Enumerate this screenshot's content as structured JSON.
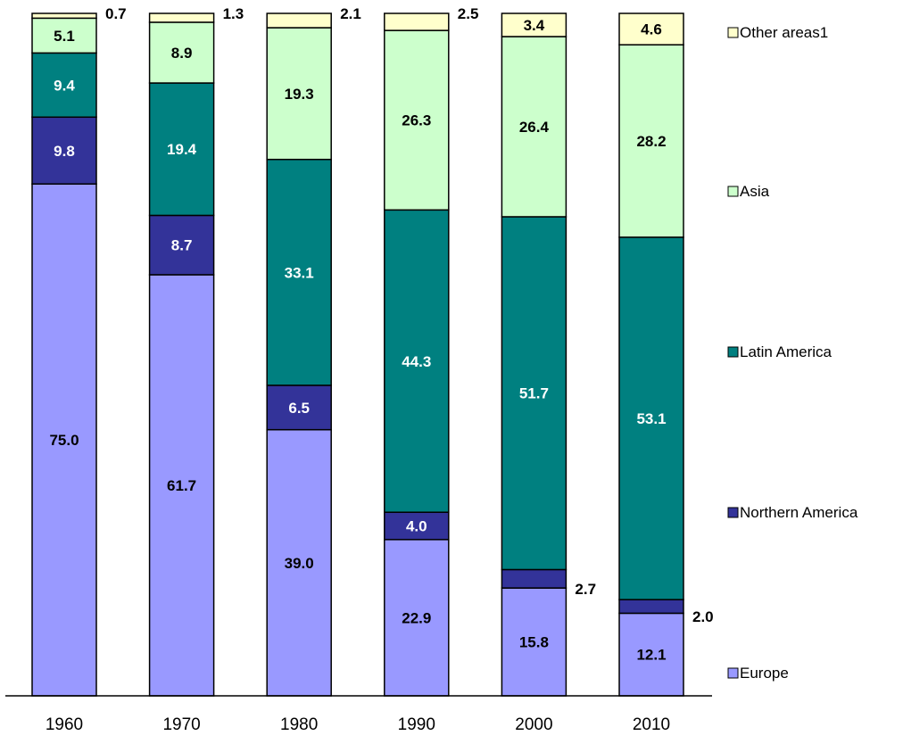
{
  "chart_data": {
    "type": "bar",
    "stacked": true,
    "categories": [
      "1960",
      "1970",
      "1980",
      "1990",
      "2000",
      "2010"
    ],
    "series": [
      {
        "name": "Europe",
        "color": "#9999ff",
        "values": [
          75.0,
          61.7,
          39.0,
          22.9,
          15.8,
          12.1
        ],
        "labels": [
          "75.0",
          "61.7",
          "39.0",
          "22.9",
          "15.8",
          "12.1"
        ]
      },
      {
        "name": "Northern America",
        "color": "#333399",
        "values": [
          9.8,
          8.7,
          6.5,
          4.0,
          2.7,
          2.0
        ],
        "labels": [
          "9.8",
          "8.7",
          "6.5",
          "4.0",
          "2.7",
          "2.0"
        ]
      },
      {
        "name": "Latin America",
        "color": "#008080",
        "values": [
          9.4,
          19.4,
          33.1,
          44.3,
          51.7,
          53.1
        ],
        "labels": [
          "9.4",
          "19.4",
          "33.1",
          "44.3",
          "51.7",
          "53.1"
        ]
      },
      {
        "name": "Asia",
        "color": "#ccffcc",
        "values": [
          5.1,
          8.9,
          19.3,
          26.3,
          26.4,
          28.2
        ],
        "labels": [
          "5.1",
          "8.9",
          "19.3",
          "26.3",
          "26.4",
          "28.2"
        ]
      },
      {
        "name": "Other areas1",
        "color": "#ffffcc",
        "values": [
          0.7,
          1.3,
          2.1,
          2.5,
          3.4,
          4.6
        ],
        "labels": [
          "0.7",
          "1.3",
          "2.1",
          "2.5",
          "3.4",
          "4.6"
        ]
      }
    ],
    "ylim": [
      0,
      100
    ],
    "grid": false,
    "legend_position": "right",
    "title": "",
    "xlabel": "",
    "ylabel": ""
  }
}
